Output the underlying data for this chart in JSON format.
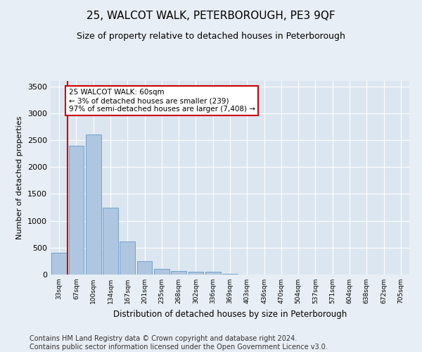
{
  "title": "25, WALCOT WALK, PETERBOROUGH, PE3 9QF",
  "subtitle": "Size of property relative to detached houses in Peterborough",
  "xlabel": "Distribution of detached houses by size in Peterborough",
  "ylabel": "Number of detached properties",
  "categories": [
    "33sqm",
    "67sqm",
    "100sqm",
    "134sqm",
    "167sqm",
    "201sqm",
    "235sqm",
    "268sqm",
    "302sqm",
    "336sqm",
    "369sqm",
    "403sqm",
    "436sqm",
    "470sqm",
    "504sqm",
    "537sqm",
    "571sqm",
    "604sqm",
    "638sqm",
    "672sqm",
    "705sqm"
  ],
  "values": [
    400,
    2400,
    2600,
    1250,
    620,
    250,
    100,
    65,
    55,
    55,
    10,
    0,
    0,
    0,
    0,
    0,
    0,
    0,
    0,
    0,
    0
  ],
  "bar_color": "#aec6e0",
  "bar_edge_color": "#6699cc",
  "highlight_line_color": "#cc0000",
  "annotation_text": "25 WALCOT WALK: 60sqm\n← 3% of detached houses are smaller (239)\n97% of semi-detached houses are larger (7,408) →",
  "annotation_box_color": "#ffffff",
  "annotation_box_edge": "#cc0000",
  "ylim": [
    0,
    3600
  ],
  "yticks": [
    0,
    500,
    1000,
    1500,
    2000,
    2500,
    3000,
    3500
  ],
  "footer_line1": "Contains HM Land Registry data © Crown copyright and database right 2024.",
  "footer_line2": "Contains public sector information licensed under the Open Government Licence v3.0.",
  "bg_color": "#e8eef5",
  "plot_bg_color": "#dce6f0",
  "title_fontsize": 11,
  "subtitle_fontsize": 9,
  "footer_fontsize": 7
}
